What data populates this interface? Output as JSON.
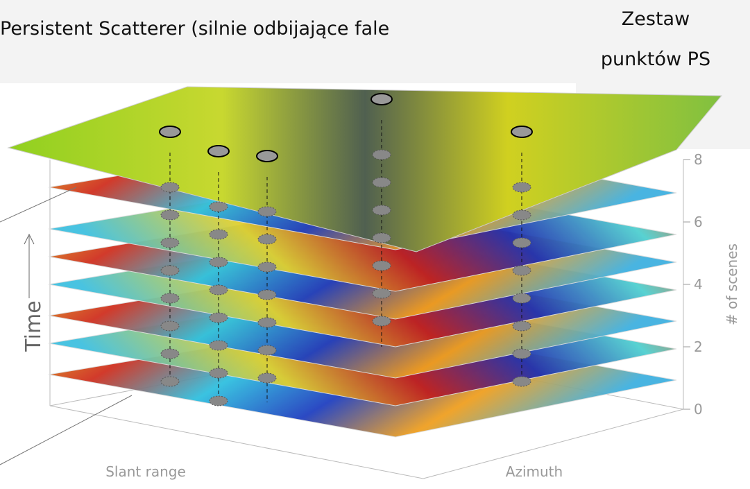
{
  "header": {
    "title": "Persistent Scatterer (silnie odbijające fale",
    "ps_set": [
      "Zestaw",
      "punktów PS"
    ]
  },
  "axes": {
    "time_label": "Time",
    "scenes_label": "# of scenes",
    "scenes_ticks": [
      0,
      2,
      4,
      6,
      8
    ],
    "x_label": "Slant range",
    "y_label": "Azimuth"
  }
}
